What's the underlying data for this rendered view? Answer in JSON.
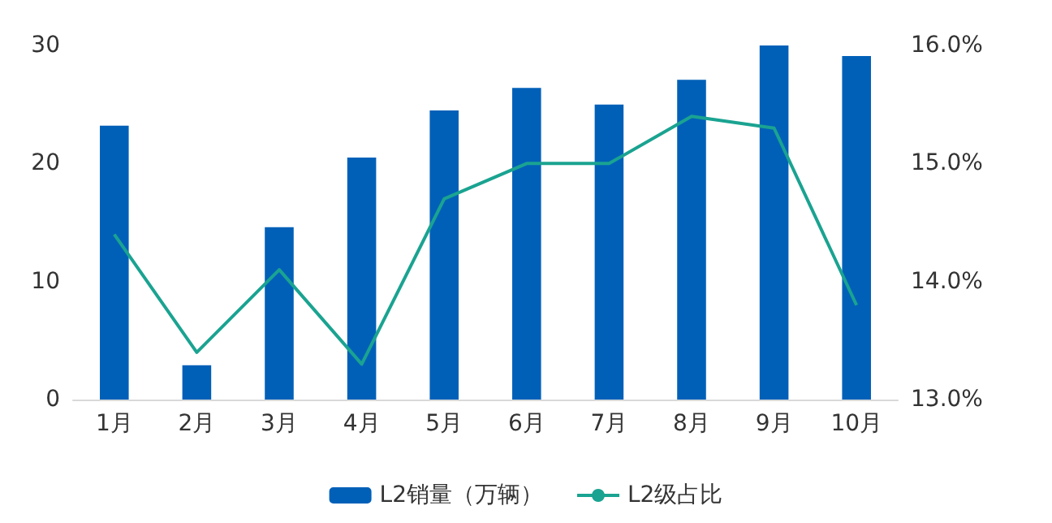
{
  "chart_data": {
    "type": "bar",
    "categories": [
      "1月",
      "2月",
      "3月",
      "4月",
      "5月",
      "6月",
      "7月",
      "8月",
      "9月",
      "10月"
    ],
    "series": [
      {
        "name": "L2销量（万辆）",
        "color": "#0060b8",
        "values": [
          23.2,
          2.9,
          14.6,
          20.5,
          24.5,
          26.4,
          25.0,
          27.1,
          30.0,
          29.1
        ]
      },
      {
        "name": "L2级占比",
        "type": "line",
        "axis": "y2",
        "color": "#1aa391",
        "values": [
          14.4,
          13.4,
          14.1,
          13.3,
          14.7,
          15.0,
          15.0,
          15.4,
          15.3,
          13.8
        ]
      }
    ],
    "ylim": [
      0,
      30
    ],
    "yticks": [
      0,
      10,
      20,
      30
    ],
    "y2lim": [
      13,
      16
    ],
    "y2ticks": [
      {
        "value": 13,
        "label": "13.0%"
      },
      {
        "value": 14,
        "label": "14.0%"
      },
      {
        "value": 15,
        "label": "15.0%"
      },
      {
        "value": 16,
        "label": "16.0%"
      }
    ],
    "grid": false,
    "legend": "bottom",
    "marker": "none"
  }
}
